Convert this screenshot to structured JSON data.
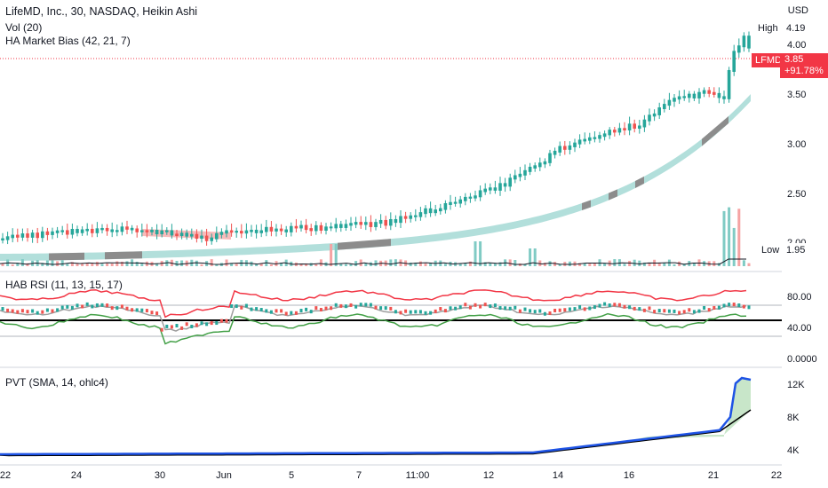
{
  "header": {
    "title": "LifeMD, Inc., 30, NASDAQ, Heikin Ashi",
    "vol_label": "Vol (20)",
    "hab_label": "HA Market Bias (42, 21, 7)",
    "currency": "USD"
  },
  "price_axis": {
    "ticks": [
      "4.00",
      "3.50",
      "3.00",
      "2.50",
      "2.00"
    ],
    "high_label": "High",
    "high_value": "4.19",
    "low_label": "Low",
    "low_value": "1.95",
    "symbol": "LFMD",
    "last_price": "3.85",
    "change_pct": "+91.78%"
  },
  "rsi_pane": {
    "label": "HAB RSI (11, 13, 15, 17)",
    "ticks": [
      "80.00",
      "40.00",
      "0.0000"
    ]
  },
  "pvt_pane": {
    "label": "PVT (SMA, 14, ohlc4)",
    "ticks": [
      "12K",
      "8K",
      "4K"
    ]
  },
  "time_axis": {
    "labels": [
      "22",
      "24",
      "30",
      "Jun",
      "5",
      "7",
      "11:00",
      "12",
      "14",
      "16",
      "21",
      "22"
    ]
  },
  "colors": {
    "up": "#26a69a",
    "down": "#ef5350",
    "bias_band": "#b2dfdb",
    "bias_band_gray": "#8c8c8c",
    "price_tag": "#f23645",
    "pvt_line": "#1e53e5",
    "pvt_fill": "#c8e6c9",
    "rsi_upper": "#f23645",
    "rsi_lower": "#43a047"
  }
}
